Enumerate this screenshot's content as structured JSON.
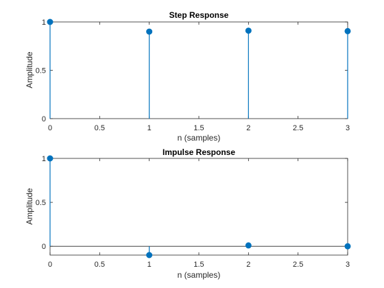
{
  "colors": {
    "stem": "#0072BD",
    "axis": "#262626",
    "background": "#ffffff"
  },
  "chart_data": [
    {
      "type": "stem",
      "title": "Step Response",
      "xlabel": "n (samples)",
      "ylabel": "Amplitude",
      "xlim": [
        0,
        3
      ],
      "ylim": [
        0,
        1
      ],
      "xticks": [
        0,
        0.5,
        1,
        1.5,
        2,
        2.5,
        3
      ],
      "xtick_labels": [
        "0",
        "0.5",
        "1",
        "1.5",
        "2",
        "2.5",
        "3"
      ],
      "yticks": [
        0,
        0.5,
        1
      ],
      "ytick_labels": [
        "0",
        "0.5",
        "1"
      ],
      "x": [
        0,
        1,
        2,
        3
      ],
      "y": [
        1.0,
        0.9,
        0.91,
        0.905
      ]
    },
    {
      "type": "stem",
      "title": "Impulse Response",
      "xlabel": "n (samples)",
      "ylabel": "Amplitude",
      "xlim": [
        0,
        3
      ],
      "ylim": [
        -0.1,
        1
      ],
      "xticks": [
        0,
        0.5,
        1,
        1.5,
        2,
        2.5,
        3
      ],
      "xtick_labels": [
        "0",
        "0.5",
        "1",
        "1.5",
        "2",
        "2.5",
        "3"
      ],
      "yticks": [
        0,
        0.5,
        1
      ],
      "ytick_labels": [
        "0",
        "0.5",
        "1"
      ],
      "x": [
        0,
        1,
        2,
        3
      ],
      "y": [
        1.0,
        -0.1,
        0.01,
        0.0
      ]
    }
  ]
}
